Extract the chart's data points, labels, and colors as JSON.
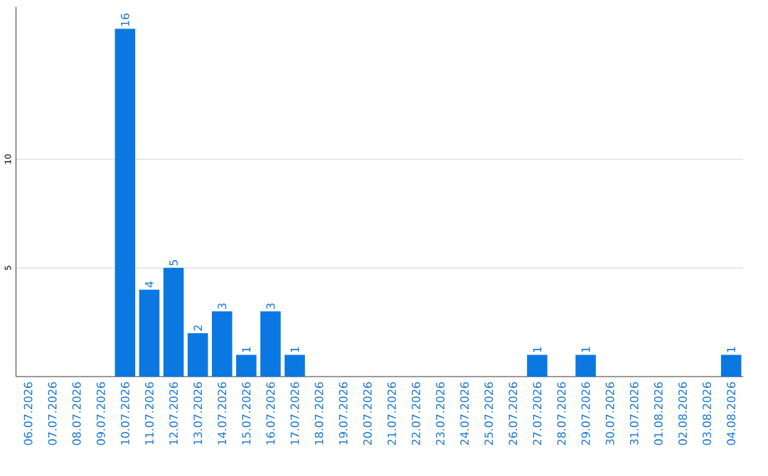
{
  "chart_data": {
    "type": "bar",
    "categories": [
      "06.07.2026",
      "07.07.2026",
      "08.07.2026",
      "09.07.2026",
      "10.07.2026",
      "11.07.2026",
      "12.07.2026",
      "13.07.2026",
      "14.07.2026",
      "15.07.2026",
      "16.07.2026",
      "17.07.2026",
      "18.07.2026",
      "19.07.2026",
      "20.07.2026",
      "21.07.2026",
      "22.07.2026",
      "23.07.2026",
      "24.07.2026",
      "25.07.2026",
      "26.07.2026",
      "27.07.2026",
      "28.07.2026",
      "29.07.2026",
      "30.07.2026",
      "31.07.2026",
      "01.08.2026",
      "02.08.2026",
      "03.08.2026",
      "04.08.2026"
    ],
    "values": [
      0,
      0,
      0,
      0,
      16,
      4,
      5,
      2,
      3,
      1,
      3,
      1,
      0,
      0,
      0,
      0,
      0,
      0,
      0,
      0,
      0,
      1,
      0,
      1,
      0,
      0,
      0,
      0,
      0,
      1
    ],
    "value_labels": [
      null,
      null,
      null,
      null,
      "16",
      "4",
      "5",
      "2",
      "3",
      "1",
      "3",
      "1",
      null,
      null,
      null,
      null,
      null,
      null,
      null,
      null,
      null,
      "1",
      null,
      "1",
      null,
      null,
      null,
      null,
      null,
      "1"
    ],
    "color": "#0a78e0",
    "ylim": [
      0,
      17
    ],
    "yticks": [
      5,
      10
    ],
    "grid": "y"
  }
}
